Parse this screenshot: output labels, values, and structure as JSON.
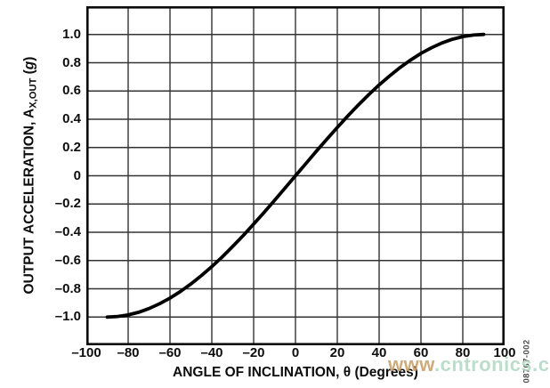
{
  "figure": {
    "code": "08767-002",
    "watermark": {
      "prefix": "www",
      "rest": ".cntronics.com",
      "prefix_color": "#c9a06a",
      "rest_color": "#b3d9c4"
    }
  },
  "chart_data": {
    "type": "line",
    "title": "",
    "xlabel": "ANGLE OF INCLINATION, θ (Degrees)",
    "ylabel": "OUTPUT ACCELERATION, AX,OUT (g)",
    "ylabel_parts": {
      "prefix": "OUTPUT ACCELERATION, A",
      "sub": "X,OUT",
      "open": " (",
      "g": "g",
      "close": ")"
    },
    "xlim": [
      -100,
      100
    ],
    "ylim": [
      -1.2,
      1.2
    ],
    "grid": true,
    "legend": "none",
    "x_gridlines": [
      -80,
      -60,
      -40,
      -20,
      0,
      20,
      40,
      60,
      80
    ],
    "y_gridlines": [
      -1.0,
      -0.8,
      -0.6,
      -0.4,
      -0.2,
      0,
      0.2,
      0.4,
      0.6,
      0.8,
      1.0
    ],
    "x_ticks": {
      "values": [
        -100,
        -80,
        -60,
        -40,
        -20,
        0,
        20,
        40,
        60,
        80,
        100
      ],
      "labels": [
        "–100",
        "–80",
        "–60",
        "–40",
        "–20",
        "0",
        "20",
        "40",
        "60",
        "80",
        "100"
      ]
    },
    "y_ticks": {
      "values": [
        1.0,
        0.8,
        0.6,
        0.4,
        0.2,
        0,
        -0.2,
        -0.4,
        -0.6,
        -0.8,
        -1.0
      ],
      "labels": [
        "1.0",
        "0.8",
        "0.6",
        "0.4",
        "0.2",
        "0",
        "–0.2",
        "–0.4",
        "–0.6",
        "–0.8",
        "–1.0"
      ]
    },
    "series": [
      {
        "name": "output-acceleration-vs-angle",
        "x": [
          -90,
          -85,
          -80,
          -75,
          -70,
          -65,
          -60,
          -55,
          -50,
          -45,
          -40,
          -35,
          -30,
          -25,
          -20,
          -15,
          -10,
          -5,
          0,
          5,
          10,
          15,
          20,
          25,
          30,
          35,
          40,
          45,
          50,
          55,
          60,
          65,
          70,
          75,
          80,
          85,
          90
        ],
        "y": [
          -1.0,
          -0.996,
          -0.985,
          -0.966,
          -0.94,
          -0.906,
          -0.866,
          -0.819,
          -0.766,
          -0.707,
          -0.643,
          -0.574,
          -0.5,
          -0.423,
          -0.342,
          -0.259,
          -0.174,
          -0.087,
          0.0,
          0.087,
          0.174,
          0.259,
          0.342,
          0.423,
          0.5,
          0.574,
          0.643,
          0.707,
          0.766,
          0.819,
          0.866,
          0.906,
          0.94,
          0.966,
          0.985,
          0.996,
          1.0
        ]
      }
    ],
    "colors": {
      "line": "#000000",
      "grid": "#333333",
      "frame": "#0a0a0a",
      "text": "#0d0d0d"
    }
  }
}
